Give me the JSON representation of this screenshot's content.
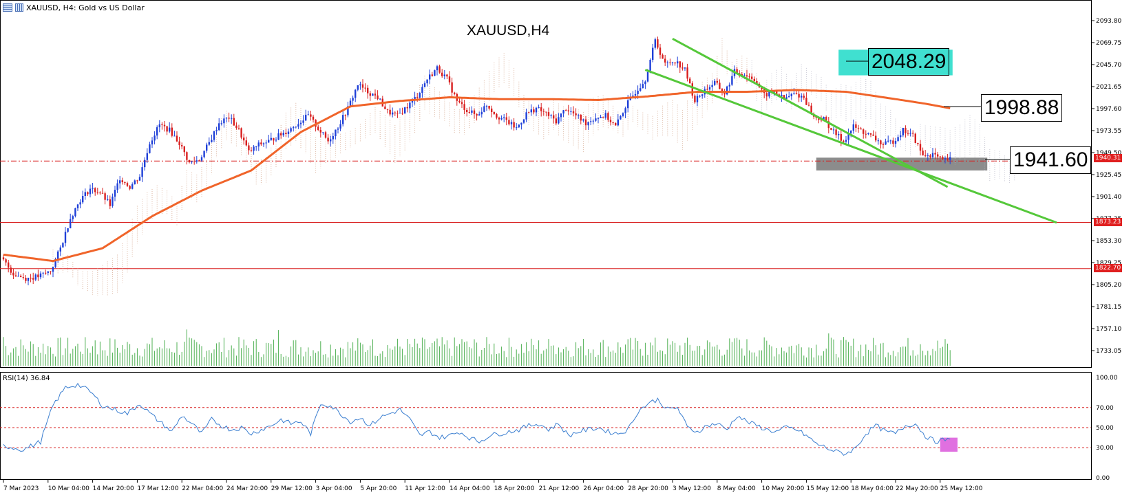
{
  "header": {
    "title_text": "XAUUSD, H4:  Gold vs US Dollar"
  },
  "chart_title": "XAUUSD,H4",
  "rsi_label": "RSI(14) 36.84",
  "price_tags": {
    "current": "1940.31",
    "level1": "1873.23",
    "level2": "1822.70"
  },
  "callouts": {
    "resistance": "2048.29",
    "ma_level": "1998.88",
    "support": "1941.60"
  },
  "colors": {
    "bull": "#1e3fd8",
    "bear": "#d81e1e",
    "ma": "#f0642a",
    "channel": "#55c83a",
    "volume": "#4caf50",
    "rsi": "#3a7ed0",
    "cloud_up": "#d4a48a",
    "cloud_down": "#b8b8c8",
    "resistance_zone": "#40e0d0",
    "support_zone": "#8c8c8c",
    "rsi_marker": "#e070e0"
  },
  "chart_data": [
    {
      "type": "candlestick",
      "title": "XAUUSD,H4",
      "y_ticks": [
        "2093.80",
        "2069.75",
        "2045.70",
        "2021.65",
        "1997.60",
        "1973.55",
        "1949.50",
        "1925.45",
        "1901.40",
        "1877.35",
        "1853.30",
        "1829.25",
        "1805.20",
        "1781.15",
        "1757.10",
        "1733.05"
      ],
      "ylim": [
        1720,
        2102
      ],
      "x_ticks": [
        "7 Mar 2023",
        "10 Mar 04:00",
        "14 Mar 20:00",
        "17 Mar 12:00",
        "22 Mar 04:00",
        "24 Mar 20:00",
        "29 Mar 12:00",
        "3 Apr 04:00",
        "5 Apr 20:00",
        "11 Apr 12:00",
        "14 Apr 04:00",
        "18 Apr 20:00",
        "21 Apr 12:00",
        "26 Apr 04:00",
        "28 Apr 20:00",
        "3 May 12:00",
        "8 May 04:00",
        "10 May 20:00",
        "15 May 12:00",
        "18 May 04:00",
        "22 May 20:00",
        "25 May 12:00"
      ],
      "anchors": [
        [
          0,
          1835
        ],
        [
          5,
          1817
        ],
        [
          10,
          1812
        ],
        [
          15,
          1814
        ],
        [
          20,
          1820
        ],
        [
          24,
          1845
        ],
        [
          28,
          1878
        ],
        [
          32,
          1898
        ],
        [
          36,
          1910
        ],
        [
          40,
          1906
        ],
        [
          44,
          1892
        ],
        [
          48,
          1922
        ],
        [
          52,
          1912
        ],
        [
          56,
          1924
        ],
        [
          60,
          1960
        ],
        [
          64,
          1980
        ],
        [
          68,
          1974
        ],
        [
          72,
          1960
        ],
        [
          76,
          1938
        ],
        [
          80,
          1942
        ],
        [
          84,
          1960
        ],
        [
          88,
          1982
        ],
        [
          92,
          1988
        ],
        [
          96,
          1974
        ],
        [
          100,
          1950
        ],
        [
          104,
          1958
        ],
        [
          108,
          1962
        ],
        [
          112,
          1968
        ],
        [
          116,
          1974
        ],
        [
          120,
          1982
        ],
        [
          124,
          1990
        ],
        [
          128,
          1976
        ],
        [
          132,
          1962
        ],
        [
          136,
          1978
        ],
        [
          140,
          1998
        ],
        [
          144,
          2024
        ],
        [
          148,
          2016
        ],
        [
          152,
          2010
        ],
        [
          156,
          1994
        ],
        [
          160,
          1990
        ],
        [
          164,
          2000
        ],
        [
          168,
          2012
        ],
        [
          172,
          2030
        ],
        [
          176,
          2042
        ],
        [
          180,
          2030
        ],
        [
          184,
          2006
        ],
        [
          188,
          1996
        ],
        [
          192,
          1990
        ],
        [
          196,
          2002
        ],
        [
          200,
          1990
        ],
        [
          204,
          1984
        ],
        [
          208,
          1976
        ],
        [
          212,
          1992
        ],
        [
          216,
          1998
        ],
        [
          220,
          1992
        ],
        [
          224,
          1984
        ],
        [
          228,
          1998
        ],
        [
          232,
          1990
        ],
        [
          236,
          1982
        ],
        [
          240,
          1988
        ],
        [
          244,
          1990
        ],
        [
          248,
          1978
        ],
        [
          252,
          2000
        ],
        [
          256,
          2016
        ],
        [
          260,
          2030
        ],
        [
          264,
          2072
        ],
        [
          268,
          2046
        ],
        [
          272,
          2050
        ],
        [
          276,
          2040
        ],
        [
          280,
          2006
        ],
        [
          284,
          2018
        ],
        [
          288,
          2026
        ],
        [
          292,
          2014
        ],
        [
          296,
          2038
        ],
        [
          300,
          2035
        ],
        [
          304,
          2030
        ],
        [
          308,
          2012
        ],
        [
          312,
          2016
        ],
        [
          316,
          2008
        ],
        [
          320,
          2014
        ],
        [
          324,
          2010
        ],
        [
          328,
          1988
        ],
        [
          332,
          1986
        ],
        [
          336,
          1972
        ],
        [
          340,
          1962
        ],
        [
          344,
          1978
        ],
        [
          348,
          1972
        ],
        [
          352,
          1966
        ],
        [
          356,
          1958
        ],
        [
          360,
          1962
        ],
        [
          364,
          1974
        ],
        [
          368,
          1968
        ],
        [
          372,
          1946
        ],
        [
          376,
          1948
        ],
        [
          380,
          1940
        ],
        [
          382,
          1942
        ]
      ],
      "moving_average_anchors": [
        [
          0,
          1838
        ],
        [
          20,
          1831
        ],
        [
          40,
          1845
        ],
        [
          60,
          1880
        ],
        [
          80,
          1908
        ],
        [
          100,
          1930
        ],
        [
          120,
          1972
        ],
        [
          140,
          2000
        ],
        [
          160,
          2006
        ],
        [
          180,
          2010
        ],
        [
          200,
          2008
        ],
        [
          220,
          2008
        ],
        [
          240,
          2007
        ],
        [
          260,
          2011
        ],
        [
          280,
          2016
        ],
        [
          300,
          2016
        ],
        [
          320,
          2018
        ],
        [
          340,
          2016
        ],
        [
          360,
          2008
        ],
        [
          372,
          2003
        ],
        [
          382,
          1998
        ]
      ],
      "channel_lines": [
        {
          "name": "upper",
          "points": [
            [
              2074,
              270
            ],
            [
              1912,
              381
            ]
          ]
        },
        {
          "name": "lower",
          "points": [
            [
              2040,
              259
            ],
            [
              1873,
              425
            ]
          ]
        }
      ],
      "horizontal_levels": [
        1940.31,
        1873.23,
        1822.7
      ],
      "resistance_zone": {
        "from": 2034,
        "to": 2062,
        "x_from": 337,
        "x_to": 383
      },
      "support_zone": {
        "from": 1930,
        "to": 1944,
        "x_from": 328,
        "x_to": 397
      },
      "volume": "bars per candle"
    },
    {
      "type": "line",
      "name": "RSI(14)",
      "value": 36.84,
      "ylim": [
        0,
        100
      ],
      "y_ticks": [
        "100.00",
        "70.00",
        "50.00",
        "30.00",
        "0.00"
      ],
      "levels": [
        70,
        50,
        30
      ],
      "anchors": [
        [
          0,
          32
        ],
        [
          8,
          28
        ],
        [
          15,
          36
        ],
        [
          20,
          72
        ],
        [
          25,
          90
        ],
        [
          30,
          93
        ],
        [
          35,
          86
        ],
        [
          40,
          72
        ],
        [
          45,
          68
        ],
        [
          50,
          64
        ],
        [
          55,
          74
        ],
        [
          60,
          62
        ],
        [
          64,
          54
        ],
        [
          68,
          46
        ],
        [
          72,
          62
        ],
        [
          76,
          54
        ],
        [
          80,
          44
        ],
        [
          84,
          58
        ],
        [
          88,
          52
        ],
        [
          92,
          48
        ],
        [
          96,
          50
        ],
        [
          100,
          44
        ],
        [
          104,
          48
        ],
        [
          108,
          52
        ],
        [
          112,
          58
        ],
        [
          116,
          54
        ],
        [
          120,
          56
        ],
        [
          124,
          44
        ],
        [
          128,
          74
        ],
        [
          132,
          72
        ],
        [
          136,
          64
        ],
        [
          140,
          56
        ],
        [
          144,
          60
        ],
        [
          148,
          52
        ],
        [
          152,
          60
        ],
        [
          156,
          64
        ],
        [
          160,
          68
        ],
        [
          164,
          58
        ],
        [
          168,
          42
        ],
        [
          172,
          46
        ],
        [
          176,
          40
        ],
        [
          180,
          42
        ],
        [
          184,
          46
        ],
        [
          188,
          40
        ],
        [
          192,
          36
        ],
        [
          196,
          42
        ],
        [
          200,
          44
        ],
        [
          204,
          46
        ],
        [
          208,
          48
        ],
        [
          212,
          52
        ],
        [
          216,
          54
        ],
        [
          220,
          48
        ],
        [
          224,
          54
        ],
        [
          228,
          42
        ],
        [
          232,
          46
        ],
        [
          236,
          48
        ],
        [
          240,
          50
        ],
        [
          244,
          46
        ],
        [
          248,
          44
        ],
        [
          252,
          48
        ],
        [
          256,
          66
        ],
        [
          260,
          74
        ],
        [
          264,
          78
        ],
        [
          268,
          68
        ],
        [
          272,
          70
        ],
        [
          276,
          50
        ],
        [
          280,
          46
        ],
        [
          284,
          52
        ],
        [
          288,
          54
        ],
        [
          292,
          48
        ],
        [
          296,
          62
        ],
        [
          300,
          56
        ],
        [
          304,
          52
        ],
        [
          308,
          48
        ],
        [
          312,
          46
        ],
        [
          316,
          50
        ],
        [
          320,
          48
        ],
        [
          324,
          42
        ],
        [
          328,
          34
        ],
        [
          332,
          30
        ],
        [
          336,
          26
        ],
        [
          340,
          24
        ],
        [
          344,
          30
        ],
        [
          348,
          44
        ],
        [
          352,
          52
        ],
        [
          356,
          46
        ],
        [
          360,
          44
        ],
        [
          364,
          52
        ],
        [
          368,
          54
        ],
        [
          372,
          42
        ],
        [
          376,
          36
        ],
        [
          380,
          38
        ],
        [
          382,
          37
        ]
      ],
      "marker": {
        "x_from": 378,
        "x_to": 385,
        "from": 26,
        "to": 40
      }
    }
  ]
}
